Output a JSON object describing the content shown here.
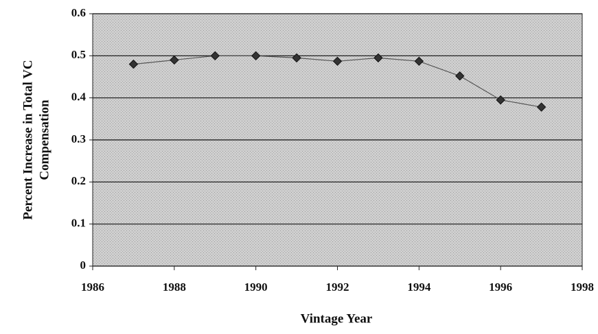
{
  "chart_data": {
    "type": "line",
    "xlabel": "Vintage Year",
    "ylabel": [
      "Percent Increase in Total VC",
      "Compensation"
    ],
    "x": [
      1987,
      1988,
      1989,
      1990,
      1991,
      1992,
      1993,
      1994,
      1995,
      1996,
      1997
    ],
    "series": [
      {
        "name": "Percent Increase",
        "color": "#555555",
        "values": [
          0.48,
          0.49,
          0.5,
          0.5,
          0.495,
          0.487,
          0.495,
          0.487,
          0.452,
          0.395,
          0.378
        ]
      }
    ],
    "xlim": [
      1986,
      1998
    ],
    "xticks": [
      1986,
      1988,
      1990,
      1992,
      1994,
      1996,
      1998
    ],
    "ylim": [
      0,
      0.6
    ],
    "yticks": [
      0,
      0.1,
      0.2,
      0.3,
      0.4,
      0.5,
      0.6
    ],
    "grid": true
  }
}
